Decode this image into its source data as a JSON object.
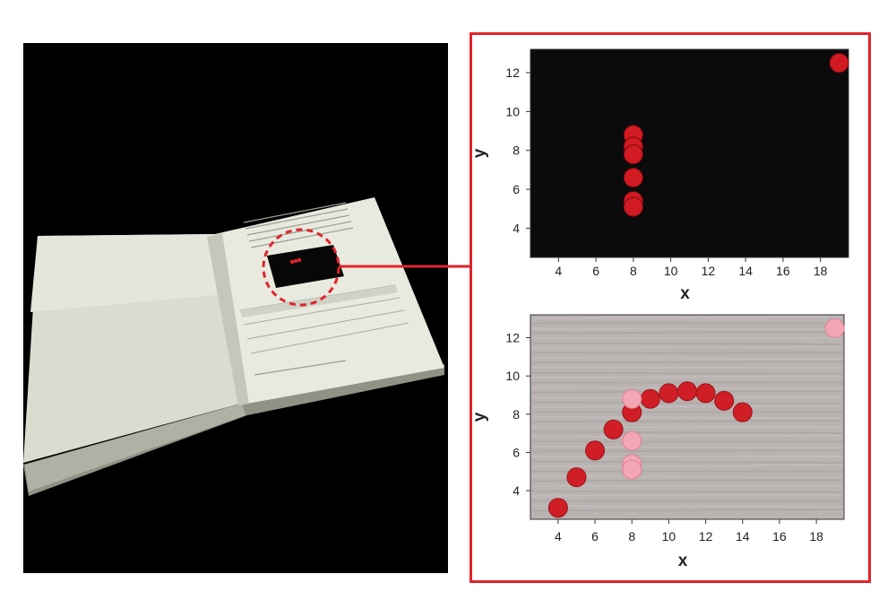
{
  "colors": {
    "frame": "#e0242b",
    "dot_dark_bg": "#d21a22",
    "dot_light_bg": "#d01e26",
    "dot_pale": "#f3a6b5",
    "panel_dark": "#0b0b0c",
    "panel_light": "#b9b3b2"
  },
  "chart_data": [
    {
      "type": "scatter",
      "title": "",
      "xlabel": "x",
      "ylabel": "y",
      "xlim": [
        2.5,
        19.5
      ],
      "ylim": [
        2.5,
        13.2
      ],
      "xticks": [
        4,
        6,
        8,
        10,
        12,
        14,
        16,
        18
      ],
      "yticks": [
        4,
        6,
        8,
        10,
        12
      ],
      "background": "dark",
      "series": [
        {
          "points": [
            [
              8,
              8.8
            ],
            [
              8,
              8.2
            ],
            [
              8,
              7.8
            ],
            [
              8,
              6.6
            ],
            [
              8,
              5.4
            ],
            [
              8,
              5.1
            ],
            [
              19,
              12.5
            ]
          ]
        }
      ]
    },
    {
      "type": "scatter",
      "title": "",
      "xlabel": "x",
      "ylabel": "y",
      "xlim": [
        2.5,
        19.5
      ],
      "ylim": [
        2.5,
        13.2
      ],
      "xticks": [
        4,
        6,
        8,
        10,
        12,
        14,
        16,
        18
      ],
      "yticks": [
        4,
        6,
        8,
        10,
        12
      ],
      "background": "light",
      "series": [
        {
          "points": [
            [
              4,
              3.1
            ],
            [
              5,
              4.7
            ],
            [
              6,
              6.1
            ],
            [
              7,
              7.2
            ],
            [
              8,
              8.1
            ],
            [
              9,
              8.8
            ],
            [
              10,
              9.1
            ],
            [
              11,
              9.2
            ],
            [
              12,
              9.1
            ],
            [
              13,
              8.7
            ],
            [
              14,
              8.1
            ]
          ]
        },
        {
          "points": [
            [
              8,
              8.8
            ],
            [
              8,
              6.6
            ],
            [
              8,
              5.4
            ],
            [
              8,
              5.1
            ],
            [
              19,
              12.5
            ]
          ]
        }
      ]
    }
  ]
}
